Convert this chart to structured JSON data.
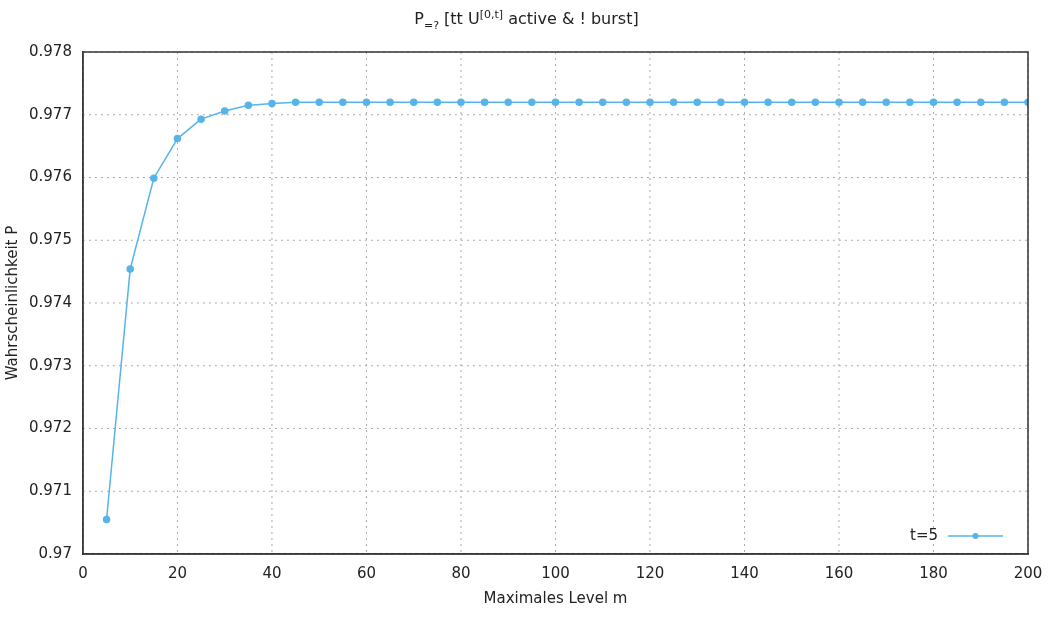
{
  "chart_data": {
    "type": "line",
    "title": "P$_{=?}$ [tt U$^{[0,t]}$ active & ! burst]",
    "xlabel": "Maximales Level m",
    "ylabel": "Wahrscheinlichkeit P",
    "x": [
      5,
      10,
      15,
      20,
      25,
      30,
      35,
      40,
      45,
      50,
      55,
      60,
      65,
      70,
      75,
      80,
      85,
      90,
      95,
      100,
      105,
      110,
      115,
      120,
      125,
      130,
      135,
      140,
      145,
      150,
      155,
      160,
      165,
      170,
      175,
      180,
      185,
      190,
      195,
      200
    ],
    "series": [
      {
        "name": "t=5",
        "color": "#56b4e9",
        "values": [
          0.97055,
          0.97454,
          0.97599,
          0.97662,
          0.97693,
          0.97706,
          0.97715,
          0.97718,
          0.9772,
          0.9772,
          0.9772,
          0.9772,
          0.9772,
          0.9772,
          0.9772,
          0.9772,
          0.9772,
          0.9772,
          0.9772,
          0.9772,
          0.9772,
          0.9772,
          0.9772,
          0.9772,
          0.9772,
          0.9772,
          0.9772,
          0.9772,
          0.9772,
          0.9772,
          0.9772,
          0.9772,
          0.9772,
          0.9772,
          0.9772,
          0.9772,
          0.9772,
          0.9772,
          0.9772,
          0.9772
        ]
      }
    ],
    "xlim": [
      0,
      200
    ],
    "xticks": [
      0,
      20,
      40,
      60,
      80,
      100,
      120,
      140,
      160,
      180,
      200
    ],
    "ylim": [
      0.97,
      0.978
    ],
    "yticks": [
      0.97,
      0.971,
      0.972,
      0.973,
      0.974,
      0.975,
      0.976,
      0.977,
      0.978
    ],
    "grid": true,
    "legend": "bottom right",
    "marker": "circle",
    "line_style": "solid"
  }
}
